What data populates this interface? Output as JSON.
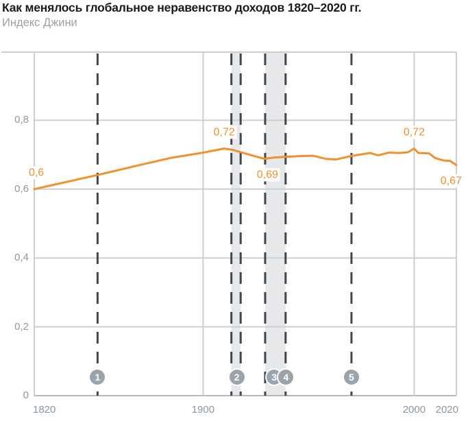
{
  "header": {
    "title": "Как менялось глобальное неравенство доходов 1820–2020 гг.",
    "subtitle": "Индекс Джини"
  },
  "colors": {
    "line": "#F1902E",
    "point_label": "#F1912C",
    "band": "#E7E8EA",
    "event_line": "#41464D",
    "grid": "#CCCFD1",
    "axis": "#B5B9BC",
    "marker_bg": "#9AA4AC",
    "marker_text": "#FFFFFF",
    "title": "#1A1A1A",
    "subtitle": "#9CA2A8",
    "tick": "#8D97A0"
  },
  "chart_data": {
    "type": "line",
    "title": "Как менялось глобальное неравенство доходов 1820–2020 гг.",
    "subtitle": "Индекс Джини",
    "xlabel": "",
    "ylabel": "Индекс Джини",
    "xlim": [
      1820,
      2020
    ],
    "ylim": [
      0,
      1
    ],
    "grid": "on",
    "legend": "none",
    "x_ticks": [
      {
        "year": 1820,
        "label": "1820",
        "align": "left"
      },
      {
        "year": 1900,
        "label": "1900",
        "align": "center"
      },
      {
        "year": 2000,
        "label": "2000",
        "align": "center"
      },
      {
        "year": 2020,
        "label": "2020",
        "align": "right"
      }
    ],
    "y_ticks": [
      {
        "value": 0,
        "label": "0"
      },
      {
        "value": 0.2,
        "label": "0,2"
      },
      {
        "value": 0.4,
        "label": "0,4"
      },
      {
        "value": 0.6,
        "label": "0,6"
      },
      {
        "value": 0.8,
        "label": "0,8"
      }
    ],
    "series": [
      {
        "name": "Индекс Джини",
        "points": [
          [
            1820,
            0.6
          ],
          [
            1850,
            0.641
          ],
          [
            1870,
            0.67
          ],
          [
            1885,
            0.691
          ],
          [
            1900,
            0.706
          ],
          [
            1910,
            0.718
          ],
          [
            1914,
            0.714
          ],
          [
            1918,
            0.707
          ],
          [
            1923,
            0.698
          ],
          [
            1929,
            0.688
          ],
          [
            1934,
            0.692
          ],
          [
            1940,
            0.694
          ],
          [
            1946,
            0.696
          ],
          [
            1952,
            0.697
          ],
          [
            1958,
            0.688
          ],
          [
            1963,
            0.686
          ],
          [
            1970,
            0.696
          ],
          [
            1975,
            0.701
          ],
          [
            1979,
            0.705
          ],
          [
            1983,
            0.698
          ],
          [
            1988,
            0.706
          ],
          [
            1993,
            0.705
          ],
          [
            1997,
            0.707
          ],
          [
            2000,
            0.718
          ],
          [
            2002,
            0.705
          ],
          [
            2007,
            0.704
          ],
          [
            2010,
            0.69
          ],
          [
            2014,
            0.683
          ],
          [
            2017,
            0.682
          ],
          [
            2020,
            0.67
          ]
        ]
      }
    ],
    "point_labels": [
      {
        "text": "0,6",
        "year": 1821,
        "value": 0.6,
        "dy": -24
      },
      {
        "text": "0,72",
        "year": 1910,
        "value": 0.718,
        "dy": -24
      },
      {
        "text": "0,69",
        "year": 1930.5,
        "value": 0.688,
        "dy": 23
      },
      {
        "text": "0,72",
        "year": 2000,
        "value": 0.718,
        "dy": -24
      },
      {
        "text": "0,67",
        "year": 2017.5,
        "value": 0.67,
        "dy": 23
      }
    ],
    "shaded_bands": [
      {
        "from": 1913.4,
        "to": 1917.8
      },
      {
        "from": 1929.4,
        "to": 1939.1
      }
    ],
    "event_lines": [
      1850,
      1913.4,
      1917.8,
      1929.4,
      1939.1,
      1970.3
    ],
    "event_markers": [
      {
        "label": "1",
        "year": 1850
      },
      {
        "label": "2",
        "year": 1916
      },
      {
        "label": "3",
        "year": 1933.7
      },
      {
        "label": "4",
        "year": 1939.3
      },
      {
        "label": "5",
        "year": 1970.3
      }
    ]
  }
}
